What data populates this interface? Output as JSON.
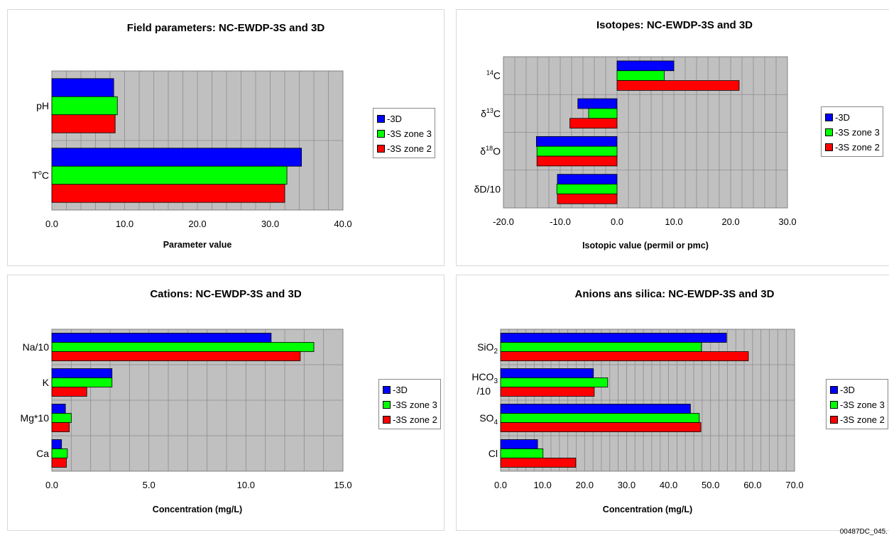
{
  "colors": {
    "s3d": "#0000ff",
    "s3s_z3": "#00ff00",
    "s3s_z2": "#ff0000",
    "plot_bg": "#c0c0c0",
    "grid": "#8c8c8c"
  },
  "footer_code": "00487DC_045.",
  "chart_data": [
    {
      "type": "bar",
      "orientation": "horizontal",
      "title": "Field parameters: NC-EWDP-3S and 3D",
      "xlabel": "Parameter value",
      "ylabel": "",
      "xlim": [
        0,
        40
      ],
      "x_major_ticks": [
        0,
        10,
        20,
        30,
        40
      ],
      "x_minor_step": 2,
      "tick_labels": [
        "0.0",
        "10.0",
        "20.0",
        "30.0",
        "40.0"
      ],
      "categories": [
        {
          "text": "pH"
        },
        {
          "text": "T",
          "sup": "o",
          "after": "C"
        }
      ],
      "series": [
        {
          "name": "-3D",
          "values": [
            8.5,
            34.3
          ]
        },
        {
          "name": "-3S zone 3",
          "values": [
            9.0,
            32.3
          ]
        },
        {
          "name": "-3S zone 2",
          "values": [
            8.7,
            32.0
          ]
        }
      ],
      "legend": "right",
      "grid": true
    },
    {
      "type": "bar",
      "orientation": "horizontal",
      "title": "Isotopes: NC-EWDP-3S and 3D",
      "xlabel": "Isotopic value (permil or pmc)",
      "ylabel": "",
      "xlim": [
        -20,
        30
      ],
      "x_major_ticks": [
        -20,
        -10,
        0,
        10,
        20,
        30
      ],
      "x_minor_step": 2,
      "tick_labels": [
        "-20.0",
        "-10.0",
        "0.0",
        "10.0",
        "20.0",
        "30.0"
      ],
      "categories": [
        {
          "sup": "14",
          "after": "C"
        },
        {
          "text": "δ",
          "sup": "13",
          "after": "C"
        },
        {
          "text": "δ",
          "sup": "18",
          "after": "O"
        },
        {
          "text": "δD/10"
        }
      ],
      "series": [
        {
          "name": "-3D",
          "values": [
            10.0,
            -6.9,
            -14.2,
            -10.5
          ]
        },
        {
          "name": "-3S zone 3",
          "values": [
            8.3,
            -5.0,
            -14.1,
            -10.6
          ]
        },
        {
          "name": "-3S zone 2",
          "values": [
            21.5,
            -8.3,
            -14.1,
            -10.5
          ]
        }
      ],
      "legend": "right",
      "grid": true
    },
    {
      "type": "bar",
      "orientation": "horizontal",
      "title": "Cations: NC-EWDP-3S and 3D",
      "xlabel": "Concentration (mg/L)",
      "ylabel": "",
      "xlim": [
        0,
        15
      ],
      "x_major_ticks": [
        0,
        5,
        10,
        15
      ],
      "x_minor_step": 1,
      "tick_labels": [
        "0.0",
        "5.0",
        "10.0",
        "15.0"
      ],
      "categories": [
        {
          "text": "Na/10"
        },
        {
          "text": "K"
        },
        {
          "text": "Mg*10"
        },
        {
          "text": "Ca"
        }
      ],
      "series": [
        {
          "name": "-3D",
          "values": [
            11.3,
            3.1,
            0.7,
            0.5
          ]
        },
        {
          "name": "-3S zone 3",
          "values": [
            13.5,
            3.1,
            1.0,
            0.8
          ]
        },
        {
          "name": "-3S zone 2",
          "values": [
            12.8,
            1.8,
            0.9,
            0.75
          ]
        }
      ],
      "legend": "right",
      "grid": true
    },
    {
      "type": "bar",
      "orientation": "horizontal",
      "title": "Anions ans silica: NC-EWDP-3S and 3D",
      "xlabel": "Concentration (mg/L)",
      "ylabel": "",
      "xlim": [
        0,
        70
      ],
      "x_major_ticks": [
        0,
        10,
        20,
        30,
        40,
        50,
        60,
        70
      ],
      "x_minor_step": 2,
      "tick_labels": [
        "0.0",
        "10.0",
        "20.0",
        "30.0",
        "40.0",
        "50.0",
        "60.0",
        "70.0"
      ],
      "categories": [
        {
          "text": "SiO",
          "sub": "2"
        },
        {
          "text": "HCO",
          "sub": "3",
          "line2": "/10"
        },
        {
          "text": "SO",
          "sub": "4"
        },
        {
          "text": "Cl"
        }
      ],
      "series": [
        {
          "name": "-3D",
          "values": [
            53.8,
            22.1,
            45.2,
            8.8
          ]
        },
        {
          "name": "-3S zone 3",
          "values": [
            47.8,
            25.5,
            47.3,
            10.1
          ]
        },
        {
          "name": "-3S zone 2",
          "values": [
            59.0,
            22.3,
            47.7,
            17.9
          ]
        }
      ],
      "legend": "right",
      "grid": true
    }
  ]
}
